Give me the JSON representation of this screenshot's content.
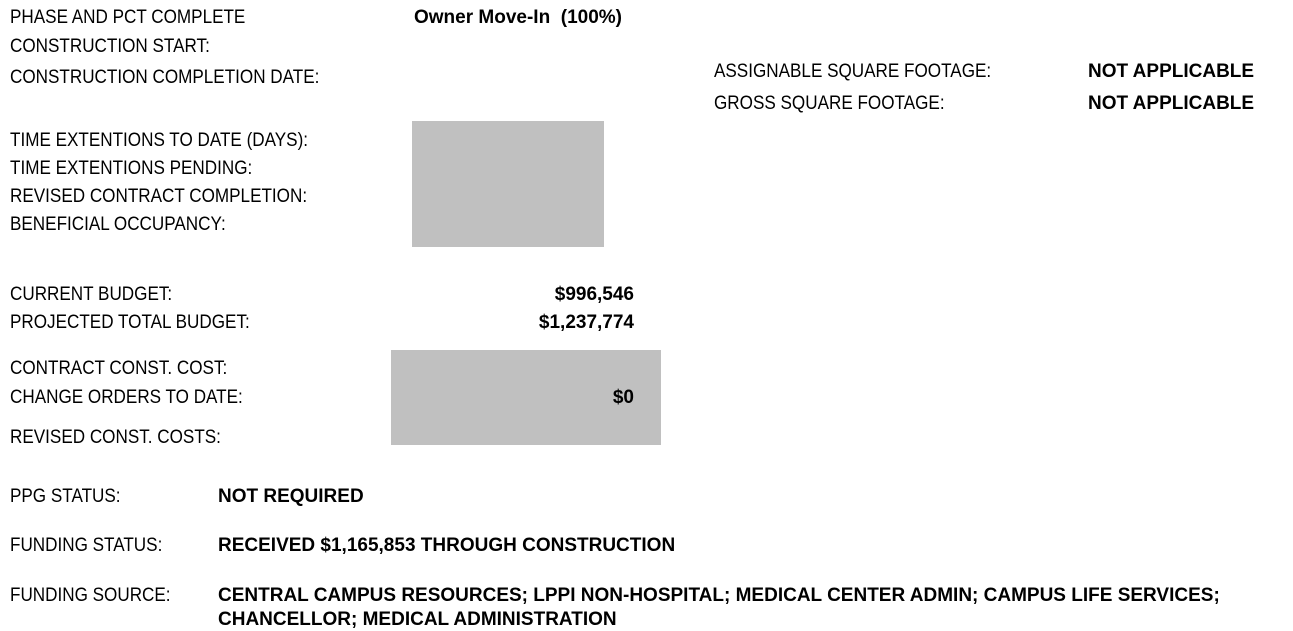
{
  "schedule": {
    "phase": {
      "label": "PHASE AND PCT COMPLETE",
      "value": "Owner Move-In  (100%)"
    },
    "construction_start": {
      "label": "CONSTRUCTION START:"
    },
    "construction_completion": {
      "label": "CONSTRUCTION COMPLETION DATE:"
    },
    "time_extensions": {
      "label": "TIME EXTENTIONS TO DATE (DAYS):"
    },
    "time_extensions_pending": {
      "label": "TIME EXTENTIONS PENDING:"
    },
    "revised_completion": {
      "label": "REVISED CONTRACT COMPLETION:"
    },
    "beneficial_occupancy": {
      "label": "BENEFICIAL OCCUPANCY:"
    }
  },
  "footage": {
    "assignable": {
      "label": "ASSIGNABLE SQUARE FOOTAGE:",
      "value": "NOT APPLICABLE"
    },
    "gross": {
      "label": "GROSS SQUARE FOOTAGE:",
      "value": "NOT APPLICABLE"
    }
  },
  "budget": {
    "current": {
      "label": "CURRENT BUDGET:",
      "value": "$996,546"
    },
    "projected": {
      "label": "PROJECTED TOTAL BUDGET:",
      "value": "$1,237,774"
    },
    "contract_cost": {
      "label": "CONTRACT CONST. COST:"
    },
    "change_orders": {
      "label": "CHANGE ORDERS TO DATE:",
      "value": "$0"
    },
    "revised_cost": {
      "label": "REVISED CONST. COSTS:"
    }
  },
  "status": {
    "ppg": {
      "label": "PPG STATUS:",
      "value": "NOT REQUIRED"
    },
    "funding_status": {
      "label": "FUNDING STATUS:",
      "value": "RECEIVED $1,165,853 THROUGH CONSTRUCTION"
    },
    "funding_source": {
      "label": "FUNDING SOURCE:",
      "value": "CENTRAL CAMPUS RESOURCES; LPPI NON-HOSPITAL; MEDICAL CENTER ADMIN; CAMPUS LIFE SERVICES; CHANCELLOR; MEDICAL ADMINISTRATION"
    }
  }
}
